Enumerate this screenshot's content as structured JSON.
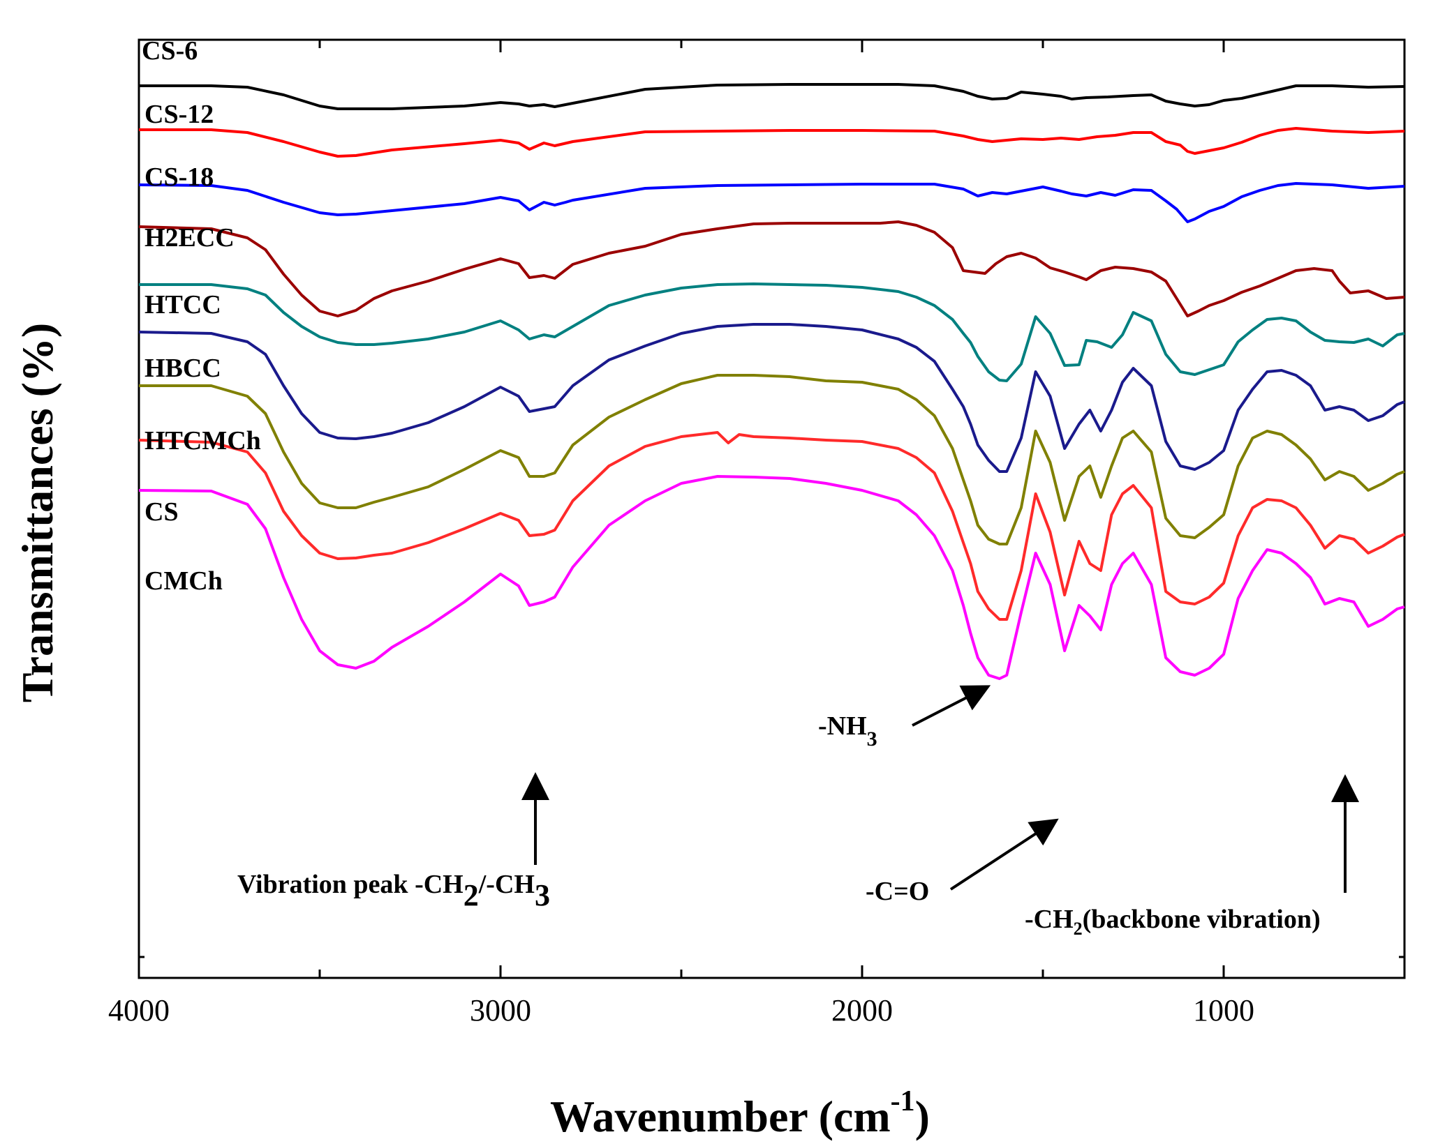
{
  "chart_data": {
    "type": "line",
    "xlabel": "Wavenumber (cm",
    "xlabel_sup": "-1",
    "xlabel_end": ")",
    "ylabel": "Transmittances (%)",
    "xlim": [
      4000,
      500
    ],
    "x_reversed": true,
    "xticks": [
      4000,
      3000,
      2000,
      1000
    ],
    "y_scale": "offset stacked spectra, arbitrary units",
    "grid": false,
    "legend": "labels above each curve at left",
    "series": [
      {
        "name": "CS-6",
        "color": "#000000",
        "baseline": 95,
        "x": [
          4000,
          3800,
          3700,
          3600,
          3500,
          3450,
          3300,
          3100,
          3000,
          2950,
          2920,
          2880,
          2850,
          2800,
          2600,
          2400,
          2200,
          2000,
          1900,
          1800,
          1720,
          1680,
          1640,
          1600,
          1560,
          1500,
          1450,
          1420,
          1380,
          1320,
          1250,
          1200,
          1160,
          1120,
          1080,
          1040,
          1000,
          950,
          900,
          850,
          800,
          700,
          600,
          500
        ],
        "y": [
          95,
          95,
          97,
          108,
          124,
          128,
          128,
          124,
          119,
          121,
          124,
          122,
          125,
          120,
          100,
          94,
          93,
          93,
          93,
          95,
          103,
          110,
          114,
          113,
          104,
          107,
          110,
          114,
          112,
          111,
          109,
          108,
          117,
          121,
          124,
          122,
          116,
          113,
          107,
          101,
          95,
          95,
          97,
          96
        ]
      },
      {
        "name": "CS-12",
        "color": "#ff0000",
        "baseline": 158,
        "x": [
          4000,
          3800,
          3700,
          3600,
          3500,
          3450,
          3400,
          3300,
          3100,
          3000,
          2950,
          2920,
          2880,
          2850,
          2800,
          2600,
          2400,
          2200,
          2000,
          1800,
          1720,
          1680,
          1640,
          1600,
          1560,
          1500,
          1450,
          1400,
          1350,
          1300,
          1250,
          1200,
          1160,
          1120,
          1100,
          1080,
          1040,
          1000,
          950,
          900,
          850,
          800,
          700,
          600,
          500
        ],
        "y": [
          158,
          158,
          162,
          175,
          190,
          196,
          195,
          187,
          178,
          173,
          177,
          186,
          177,
          181,
          175,
          161,
          160,
          159,
          159,
          160,
          167,
          172,
          175,
          173,
          171,
          172,
          170,
          172,
          168,
          166,
          162,
          162,
          175,
          180,
          189,
          192,
          188,
          184,
          176,
          166,
          159,
          156,
          160,
          162,
          160
        ]
      },
      {
        "name": "CS-18",
        "color": "#0000ff",
        "baseline": 237,
        "x": [
          4000,
          3800,
          3700,
          3600,
          3500,
          3450,
          3400,
          3300,
          3100,
          3000,
          2950,
          2920,
          2880,
          2850,
          2820,
          2800,
          2600,
          2400,
          2200,
          2000,
          1800,
          1720,
          1680,
          1640,
          1600,
          1560,
          1500,
          1450,
          1420,
          1380,
          1340,
          1300,
          1250,
          1200,
          1160,
          1130,
          1100,
          1080,
          1040,
          1000,
          950,
          900,
          850,
          800,
          700,
          600,
          500
        ],
        "y": [
          237,
          238,
          245,
          262,
          277,
          280,
          279,
          274,
          264,
          255,
          260,
          273,
          262,
          266,
          262,
          259,
          242,
          238,
          237,
          236,
          236,
          243,
          253,
          248,
          250,
          246,
          240,
          246,
          250,
          253,
          248,
          252,
          244,
          245,
          260,
          272,
          290,
          286,
          275,
          268,
          254,
          245,
          238,
          235,
          237,
          242,
          239
        ]
      },
      {
        "name": "H2ECC",
        "color": "#9b0000",
        "baseline": 297,
        "x": [
          4000,
          3800,
          3700,
          3650,
          3600,
          3550,
          3500,
          3450,
          3400,
          3350,
          3300,
          3200,
          3100,
          3000,
          2950,
          2920,
          2880,
          2850,
          2800,
          2700,
          2600,
          2500,
          2400,
          2300,
          2200,
          2100,
          2000,
          1950,
          1900,
          1850,
          1800,
          1750,
          1720,
          1690,
          1660,
          1630,
          1600,
          1560,
          1520,
          1480,
          1440,
          1400,
          1380,
          1340,
          1300,
          1250,
          1200,
          1160,
          1130,
          1100,
          1070,
          1040,
          1000,
          950,
          900,
          850,
          800,
          750,
          700,
          680,
          650,
          600,
          550,
          500
        ],
        "y": [
          297,
          300,
          313,
          330,
          365,
          395,
          418,
          425,
          417,
          400,
          389,
          375,
          358,
          343,
          350,
          370,
          367,
          371,
          351,
          335,
          325,
          308,
          300,
          293,
          292,
          292,
          292,
          292,
          290,
          295,
          305,
          327,
          360,
          362,
          364,
          350,
          340,
          335,
          342,
          356,
          362,
          369,
          373,
          360,
          355,
          357,
          362,
          375,
          400,
          425,
          418,
          410,
          403,
          391,
          382,
          371,
          360,
          357,
          360,
          375,
          392,
          389,
          400,
          398
        ]
      },
      {
        "name": "HTCC",
        "color": "#008080",
        "baseline": 380,
        "x": [
          4000,
          3800,
          3700,
          3650,
          3600,
          3550,
          3500,
          3450,
          3400,
          3350,
          3300,
          3200,
          3100,
          3000,
          2950,
          2920,
          2880,
          2850,
          2800,
          2700,
          2600,
          2500,
          2400,
          2300,
          2200,
          2100,
          2000,
          1900,
          1850,
          1800,
          1750,
          1720,
          1700,
          1680,
          1650,
          1620,
          1600,
          1560,
          1520,
          1480,
          1440,
          1400,
          1380,
          1350,
          1310,
          1280,
          1250,
          1200,
          1160,
          1120,
          1080,
          1040,
          1000,
          960,
          920,
          880,
          840,
          800,
          760,
          720,
          680,
          640,
          600,
          560,
          520,
          500
        ],
        "y": [
          380,
          380,
          386,
          395,
          420,
          440,
          455,
          463,
          466,
          466,
          464,
          458,
          448,
          432,
          445,
          458,
          452,
          455,
          440,
          410,
          395,
          385,
          380,
          379,
          380,
          381,
          384,
          390,
          398,
          410,
          430,
          450,
          463,
          483,
          505,
          517,
          518,
          494,
          426,
          450,
          496,
          495,
          460,
          462,
          470,
          452,
          420,
          432,
          480,
          505,
          509,
          502,
          495,
          462,
          445,
          430,
          428,
          432,
          448,
          460,
          462,
          463,
          458,
          468,
          452,
          450
        ]
      },
      {
        "name": "HBCC",
        "color": "#1a1a8c",
        "baseline": 448,
        "x": [
          4000,
          3800,
          3700,
          3650,
          3600,
          3550,
          3500,
          3450,
          3400,
          3350,
          3300,
          3200,
          3100,
          3000,
          2950,
          2920,
          2880,
          2850,
          2800,
          2700,
          2600,
          2500,
          2400,
          2300,
          2200,
          2100,
          2000,
          1900,
          1850,
          1800,
          1750,
          1720,
          1700,
          1680,
          1650,
          1620,
          1600,
          1560,
          1520,
          1480,
          1440,
          1400,
          1370,
          1340,
          1310,
          1280,
          1250,
          1200,
          1160,
          1120,
          1080,
          1040,
          1000,
          960,
          920,
          880,
          840,
          800,
          760,
          720,
          680,
          640,
          600,
          560,
          520,
          500
        ],
        "y": [
          448,
          450,
          462,
          480,
          525,
          565,
          592,
          600,
          601,
          598,
          593,
          578,
          555,
          527,
          540,
          562,
          558,
          555,
          525,
          488,
          468,
          450,
          440,
          437,
          437,
          440,
          445,
          458,
          470,
          490,
          530,
          555,
          580,
          610,
          632,
          648,
          648,
          600,
          505,
          540,
          615,
          580,
          560,
          590,
          560,
          520,
          500,
          525,
          605,
          640,
          645,
          635,
          618,
          560,
          530,
          505,
          503,
          510,
          525,
          560,
          555,
          560,
          575,
          568,
          552,
          548
        ]
      },
      {
        "name": "HTCMCh",
        "color": "#808000",
        "baseline": 525,
        "x": [
          4000,
          3800,
          3700,
          3650,
          3600,
          3550,
          3500,
          3450,
          3400,
          3350,
          3300,
          3200,
          3100,
          3000,
          2950,
          2920,
          2880,
          2850,
          2800,
          2700,
          2600,
          2500,
          2400,
          2300,
          2200,
          2100,
          2000,
          1900,
          1850,
          1800,
          1750,
          1720,
          1700,
          1680,
          1650,
          1620,
          1600,
          1560,
          1520,
          1480,
          1440,
          1400,
          1370,
          1340,
          1310,
          1280,
          1250,
          1200,
          1160,
          1120,
          1080,
          1040,
          1000,
          960,
          920,
          880,
          840,
          800,
          760,
          720,
          680,
          640,
          600,
          560,
          520,
          500
        ],
        "y": [
          525,
          525,
          540,
          565,
          620,
          665,
          693,
          700,
          700,
          692,
          685,
          670,
          645,
          618,
          628,
          655,
          655,
          650,
          610,
          570,
          545,
          522,
          510,
          510,
          512,
          518,
          520,
          530,
          545,
          568,
          615,
          660,
          690,
          725,
          745,
          752,
          752,
          700,
          590,
          635,
          718,
          655,
          640,
          685,
          640,
          600,
          590,
          620,
          715,
          740,
          743,
          728,
          710,
          640,
          600,
          590,
          595,
          610,
          630,
          660,
          648,
          655,
          675,
          665,
          652,
          648
        ]
      },
      {
        "name": "CS",
        "color": "#ff2a2a",
        "baseline": 603,
        "x": [
          4000,
          3800,
          3700,
          3650,
          3600,
          3550,
          3500,
          3450,
          3400,
          3350,
          3300,
          3200,
          3100,
          3000,
          2950,
          2920,
          2880,
          2850,
          2800,
          2700,
          2600,
          2500,
          2400,
          2370,
          2340,
          2300,
          2200,
          2100,
          2000,
          1900,
          1850,
          1800,
          1750,
          1720,
          1700,
          1680,
          1650,
          1620,
          1600,
          1560,
          1520,
          1480,
          1440,
          1400,
          1370,
          1340,
          1310,
          1280,
          1250,
          1200,
          1160,
          1120,
          1080,
          1040,
          1000,
          960,
          920,
          880,
          840,
          800,
          760,
          720,
          680,
          640,
          600,
          560,
          520,
          500
        ],
        "y": [
          603,
          606,
          620,
          650,
          705,
          740,
          765,
          773,
          772,
          768,
          765,
          750,
          730,
          708,
          718,
          740,
          738,
          732,
          690,
          640,
          612,
          598,
          592,
          607,
          595,
          598,
          600,
          603,
          605,
          615,
          628,
          650,
          705,
          750,
          780,
          820,
          845,
          860,
          860,
          790,
          680,
          735,
          825,
          748,
          780,
          790,
          710,
          680,
          668,
          700,
          820,
          835,
          838,
          828,
          808,
          740,
          700,
          688,
          690,
          700,
          725,
          758,
          740,
          745,
          765,
          755,
          742,
          738
        ]
      },
      {
        "name": "CMCh",
        "color": "#ff00ff",
        "baseline": 675,
        "x": [
          4000,
          3800,
          3700,
          3650,
          3600,
          3550,
          3500,
          3450,
          3400,
          3350,
          3300,
          3200,
          3100,
          3000,
          2950,
          2920,
          2880,
          2850,
          2800,
          2700,
          2600,
          2500,
          2400,
          2300,
          2200,
          2100,
          2000,
          1900,
          1850,
          1800,
          1750,
          1720,
          1700,
          1680,
          1650,
          1620,
          1600,
          1560,
          1520,
          1480,
          1440,
          1400,
          1370,
          1340,
          1310,
          1280,
          1250,
          1200,
          1160,
          1120,
          1080,
          1040,
          1000,
          960,
          920,
          880,
          840,
          800,
          760,
          720,
          680,
          640,
          600,
          560,
          520,
          500
        ],
        "y": [
          675,
          676,
          695,
          730,
          800,
          860,
          905,
          925,
          930,
          920,
          900,
          870,
          835,
          795,
          812,
          840,
          835,
          828,
          785,
          725,
          690,
          665,
          655,
          656,
          658,
          665,
          675,
          690,
          710,
          740,
          790,
          840,
          880,
          915,
          940,
          945,
          940,
          850,
          765,
          810,
          905,
          840,
          855,
          875,
          810,
          780,
          765,
          810,
          915,
          935,
          940,
          930,
          910,
          830,
          790,
          760,
          765,
          780,
          800,
          838,
          830,
          835,
          870,
          860,
          845,
          842
        ]
      }
    ]
  },
  "annotations": {
    "nh3": {
      "pre": "-NH",
      "sub": "3"
    },
    "co": {
      "text": "-C=O"
    },
    "vib": {
      "pre": "Vibration peak -CH",
      "sub1": "2",
      "mid": "/-CH",
      "sub2": "3"
    },
    "ch2": {
      "pre": "-CH",
      "sub": "2",
      "post": "(backbone vibration)"
    }
  }
}
